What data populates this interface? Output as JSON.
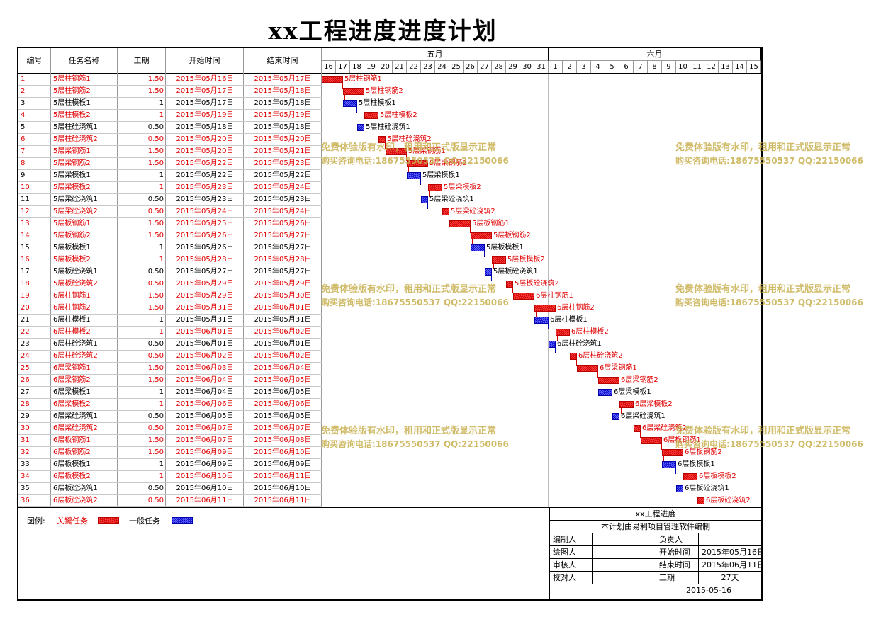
{
  "title": "xx工程进度进度计划",
  "headers": {
    "id": "编号",
    "name": "任务名称",
    "duration": "工期",
    "start": "开始时间",
    "end": "结束时间"
  },
  "months": [
    {
      "label": "五月"
    },
    {
      "label": "六月"
    }
  ],
  "days": [
    "16",
    "17",
    "18",
    "19",
    "20",
    "21",
    "22",
    "23",
    "24",
    "25",
    "26",
    "27",
    "28",
    "29",
    "30",
    "31",
    "1",
    "2",
    "3",
    "4",
    "5",
    "6",
    "7",
    "8",
    "9",
    "10",
    "11",
    "12",
    "13",
    "14",
    "15"
  ],
  "tasks": [
    {
      "id": "1",
      "name": "5层柱钢筋1",
      "duration": "1.50",
      "start": "2015年05月16日",
      "end": "2015年05月17日",
      "critical": true,
      "s": 0,
      "d": 1.5
    },
    {
      "id": "2",
      "name": "5层柱钢筋2",
      "duration": "1.50",
      "start": "2015年05月17日",
      "end": "2015年05月18日",
      "critical": true,
      "s": 1.5,
      "d": 1.5
    },
    {
      "id": "3",
      "name": "5层柱模板1",
      "duration": "1",
      "start": "2015年05月17日",
      "end": "2015年05月18日",
      "critical": false,
      "s": 1.5,
      "d": 1
    },
    {
      "id": "4",
      "name": "5层柱模板2",
      "duration": "1",
      "start": "2015年05月19日",
      "end": "2015年05月19日",
      "critical": true,
      "s": 3,
      "d": 1
    },
    {
      "id": "5",
      "name": "5层柱砼浇筑1",
      "duration": "0.50",
      "start": "2015年05月18日",
      "end": "2015年05月18日",
      "critical": false,
      "s": 2.5,
      "d": 0.5
    },
    {
      "id": "6",
      "name": "5层柱砼浇筑2",
      "duration": "0.50",
      "start": "2015年05月20日",
      "end": "2015年05月20日",
      "critical": true,
      "s": 4,
      "d": 0.5
    },
    {
      "id": "7",
      "name": "5层梁钢筋1",
      "duration": "1.50",
      "start": "2015年05月20日",
      "end": "2015年05月21日",
      "critical": true,
      "s": 4.5,
      "d": 1.5
    },
    {
      "id": "8",
      "name": "5层梁钢筋2",
      "duration": "1.50",
      "start": "2015年05月22日",
      "end": "2015年05月23日",
      "critical": true,
      "s": 6,
      "d": 1.5
    },
    {
      "id": "9",
      "name": "5层梁模板1",
      "duration": "1",
      "start": "2015年05月22日",
      "end": "2015年05月22日",
      "critical": false,
      "s": 6,
      "d": 1
    },
    {
      "id": "10",
      "name": "5层梁模板2",
      "duration": "1",
      "start": "2015年05月23日",
      "end": "2015年05月24日",
      "critical": true,
      "s": 7.5,
      "d": 1
    },
    {
      "id": "11",
      "name": "5层梁砼浇筑1",
      "duration": "0.50",
      "start": "2015年05月23日",
      "end": "2015年05月23日",
      "critical": false,
      "s": 7,
      "d": 0.5
    },
    {
      "id": "12",
      "name": "5层梁砼浇筑2",
      "duration": "0.50",
      "start": "2015年05月24日",
      "end": "2015年05月24日",
      "critical": true,
      "s": 8.5,
      "d": 0.5
    },
    {
      "id": "13",
      "name": "5层板钢筋1",
      "duration": "1.50",
      "start": "2015年05月25日",
      "end": "2015年05月26日",
      "critical": true,
      "s": 9,
      "d": 1.5
    },
    {
      "id": "14",
      "name": "5层板钢筋2",
      "duration": "1.50",
      "start": "2015年05月26日",
      "end": "2015年05月27日",
      "critical": true,
      "s": 10.5,
      "d": 1.5
    },
    {
      "id": "15",
      "name": "5层板模板1",
      "duration": "1",
      "start": "2015年05月26日",
      "end": "2015年05月27日",
      "critical": false,
      "s": 10.5,
      "d": 1
    },
    {
      "id": "16",
      "name": "5层板模板2",
      "duration": "1",
      "start": "2015年05月28日",
      "end": "2015年05月28日",
      "critical": true,
      "s": 12,
      "d": 1
    },
    {
      "id": "17",
      "name": "5层板砼浇筑1",
      "duration": "0.50",
      "start": "2015年05月27日",
      "end": "2015年05月27日",
      "critical": false,
      "s": 11.5,
      "d": 0.5
    },
    {
      "id": "18",
      "name": "5层板砼浇筑2",
      "duration": "0.50",
      "start": "2015年05月29日",
      "end": "2015年05月29日",
      "critical": true,
      "s": 13,
      "d": 0.5
    },
    {
      "id": "19",
      "name": "6层柱钢筋1",
      "duration": "1.50",
      "start": "2015年05月29日",
      "end": "2015年05月30日",
      "critical": true,
      "s": 13.5,
      "d": 1.5
    },
    {
      "id": "20",
      "name": "6层柱钢筋2",
      "duration": "1.50",
      "start": "2015年05月31日",
      "end": "2015年06月01日",
      "critical": true,
      "s": 15,
      "d": 1.5
    },
    {
      "id": "21",
      "name": "6层柱模板1",
      "duration": "1",
      "start": "2015年05月31日",
      "end": "2015年05月31日",
      "critical": false,
      "s": 15,
      "d": 1
    },
    {
      "id": "22",
      "name": "6层柱模板2",
      "duration": "1",
      "start": "2015年06月01日",
      "end": "2015年06月02日",
      "critical": true,
      "s": 16.5,
      "d": 1
    },
    {
      "id": "23",
      "name": "6层柱砼浇筑1",
      "duration": "0.50",
      "start": "2015年06月01日",
      "end": "2015年06月01日",
      "critical": false,
      "s": 16,
      "d": 0.5
    },
    {
      "id": "24",
      "name": "6层柱砼浇筑2",
      "duration": "0.50",
      "start": "2015年06月02日",
      "end": "2015年06月02日",
      "critical": true,
      "s": 17.5,
      "d": 0.5
    },
    {
      "id": "25",
      "name": "6层梁钢筋1",
      "duration": "1.50",
      "start": "2015年06月03日",
      "end": "2015年06月04日",
      "critical": true,
      "s": 18,
      "d": 1.5
    },
    {
      "id": "26",
      "name": "6层梁钢筋2",
      "duration": "1.50",
      "start": "2015年06月04日",
      "end": "2015年06月05日",
      "critical": true,
      "s": 19.5,
      "d": 1.5
    },
    {
      "id": "27",
      "name": "6层梁模板1",
      "duration": "1",
      "start": "2015年06月04日",
      "end": "2015年06月05日",
      "critical": false,
      "s": 19.5,
      "d": 1
    },
    {
      "id": "28",
      "name": "6层梁模板2",
      "duration": "1",
      "start": "2015年06月06日",
      "end": "2015年06月06日",
      "critical": true,
      "s": 21,
      "d": 1
    },
    {
      "id": "29",
      "name": "6层梁砼浇筑1",
      "duration": "0.50",
      "start": "2015年06月05日",
      "end": "2015年06月05日",
      "critical": false,
      "s": 20.5,
      "d": 0.5
    },
    {
      "id": "30",
      "name": "6层梁砼浇筑2",
      "duration": "0.50",
      "start": "2015年06月07日",
      "end": "2015年06月07日",
      "critical": true,
      "s": 22,
      "d": 0.5
    },
    {
      "id": "31",
      "name": "6层板钢筋1",
      "duration": "1.50",
      "start": "2015年06月07日",
      "end": "2015年06月08日",
      "critical": true,
      "s": 22.5,
      "d": 1.5
    },
    {
      "id": "32",
      "name": "6层板钢筋2",
      "duration": "1.50",
      "start": "2015年06月09日",
      "end": "2015年06月10日",
      "critical": true,
      "s": 24,
      "d": 1.5
    },
    {
      "id": "33",
      "name": "6层板模板1",
      "duration": "1",
      "start": "2015年06月09日",
      "end": "2015年06月09日",
      "critical": false,
      "s": 24,
      "d": 1
    },
    {
      "id": "34",
      "name": "6层板模板2",
      "duration": "1",
      "start": "2015年06月10日",
      "end": "2015年06月11日",
      "critical": true,
      "s": 25.5,
      "d": 1
    },
    {
      "id": "35",
      "name": "6层板砼浇筑1",
      "duration": "0.50",
      "start": "2015年06月10日",
      "end": "2015年06月10日",
      "critical": false,
      "s": 25,
      "d": 0.5
    },
    {
      "id": "36",
      "name": "6层板砼浇筑2",
      "duration": "0.50",
      "start": "2015年06月11日",
      "end": "2015年06月11日",
      "critical": true,
      "s": 26.5,
      "d": 0.5
    }
  ],
  "legend": {
    "label": "图例:",
    "critical": "关键任务",
    "normal": "一般任务",
    "colors": {
      "critical": "#e00000",
      "normal": "#0000cc"
    }
  },
  "info": {
    "project": "xx工程进度",
    "software": "本计划由易利项目管理软件编制",
    "compiler_label": "编制人",
    "compiler": "",
    "owner_label": "负责人",
    "owner": "",
    "drawer_label": "绘图人",
    "drawer": "",
    "start_label": "开始时间",
    "start": "2015年05月16日",
    "reviewer_label": "审核人",
    "reviewer": "",
    "end_label": "结束时间",
    "end": "2015年06月11日",
    "checker_label": "校对人",
    "checker": "",
    "duration_label": "工期",
    "duration": "27天",
    "date": "2015-05-16"
  },
  "watermark": {
    "line1": "免费体验版有水印，租用和正式版显示正常",
    "line2": "购买咨询电话:18675550537 QQ:22150066"
  }
}
